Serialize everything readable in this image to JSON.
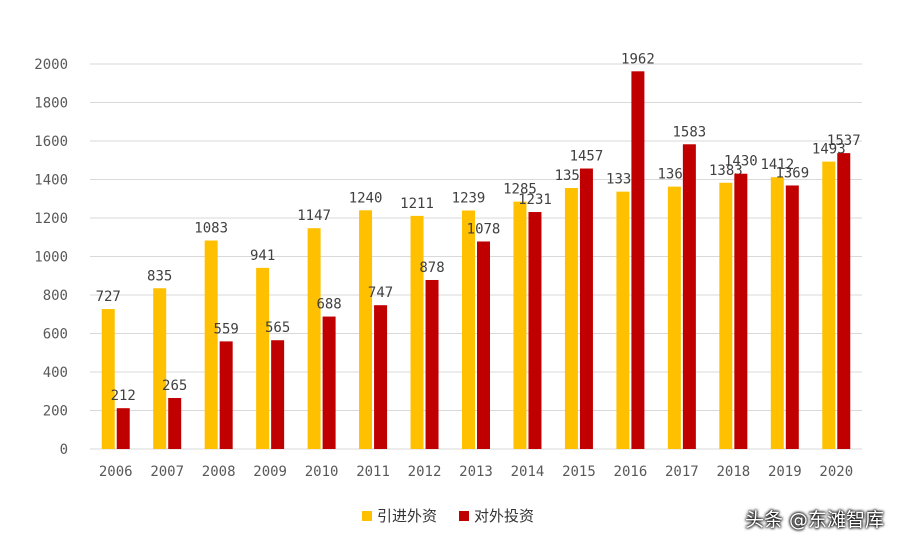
{
  "chart_data": {
    "type": "bar",
    "categories": [
      "2006",
      "2007",
      "2008",
      "2009",
      "2010",
      "2011",
      "2012",
      "2013",
      "2014",
      "2015",
      "2016",
      "2017",
      "2018",
      "2019",
      "2020"
    ],
    "series": [
      {
        "name": "引进外资",
        "color": "#FFC000",
        "values": [
          727,
          835,
          1083,
          941,
          1147,
          1240,
          1211,
          1239,
          1285,
          1356,
          1337,
          1363,
          1383,
          1412,
          1493
        ]
      },
      {
        "name": "对外投资",
        "color": "#C00000",
        "values": [
          212,
          265,
          559,
          565,
          688,
          747,
          878,
          1078,
          1231,
          1457,
          1962,
          1583,
          1430,
          1369,
          1537
        ]
      }
    ],
    "ylim": [
      0,
      2000
    ],
    "yticks": [
      0,
      200,
      400,
      600,
      800,
      1000,
      1200,
      1400,
      1600,
      1800,
      2000
    ],
    "grid": true,
    "legend_position": "bottom",
    "title": "",
    "xlabel": "",
    "ylabel": ""
  },
  "legend": {
    "item1": "引进外资",
    "item2": "对外投资"
  },
  "watermark": "头条 @东滩智库"
}
